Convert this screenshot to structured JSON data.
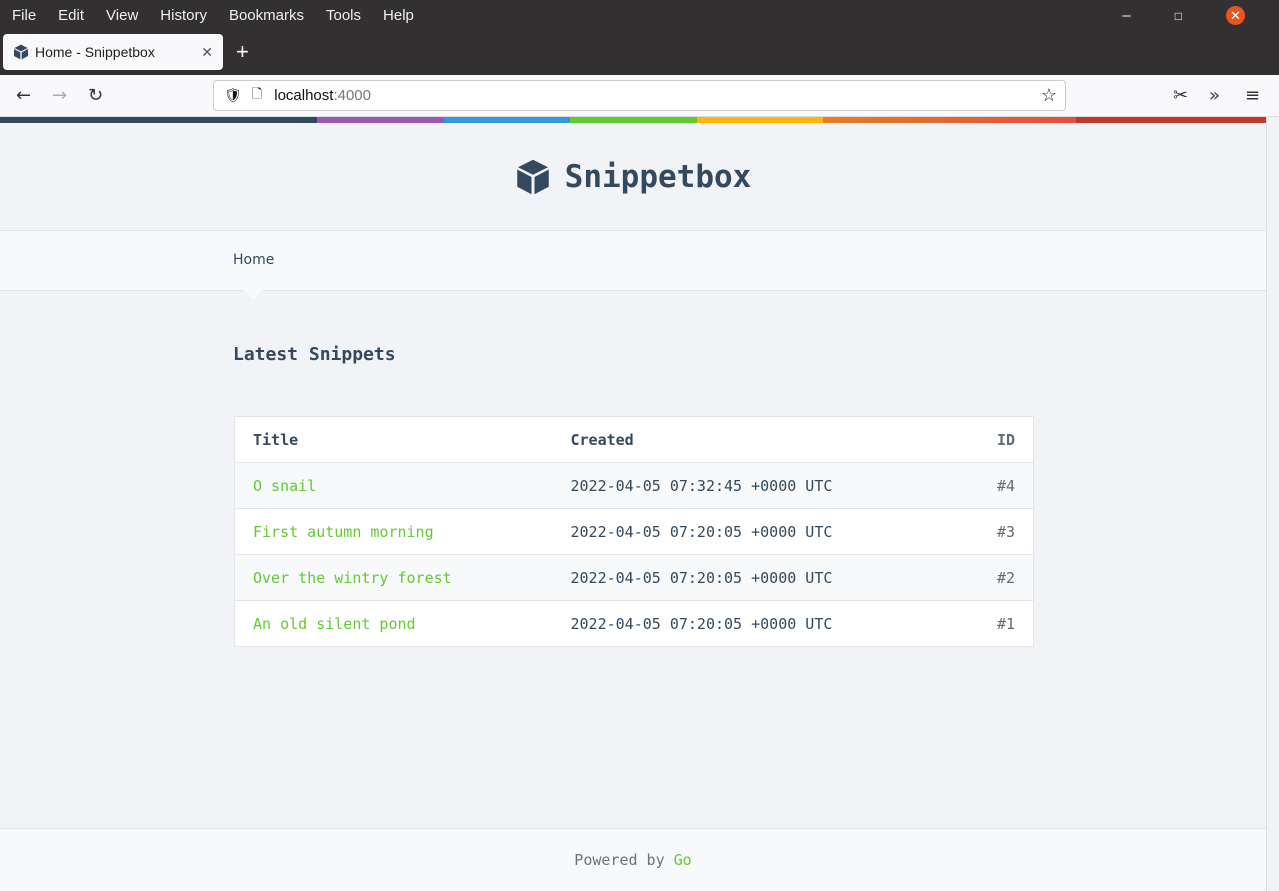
{
  "browser": {
    "menu": [
      "File",
      "Edit",
      "View",
      "History",
      "Bookmarks",
      "Tools",
      "Help"
    ],
    "tab_title": "Home - Snippetbox",
    "url_host": "localhost",
    "url_port": ":4000"
  },
  "colors": {
    "stripe": [
      "#34495e",
      "#9b59b6",
      "#3498db",
      "#62cb31",
      "#ffb606",
      "#e67e22",
      "#c0392b"
    ],
    "accent": "#62cb31",
    "brand": "#34495e"
  },
  "site": {
    "title": "Snippetbox",
    "nav_home": "Home",
    "heading": "Latest Snippets"
  },
  "table": {
    "headers": [
      "Title",
      "Created",
      "ID"
    ],
    "rows": [
      {
        "title": "O snail",
        "created": "2022-04-05 07:32:45 +0000 UTC",
        "id": "#4"
      },
      {
        "title": "First autumn morning",
        "created": "2022-04-05 07:20:05 +0000 UTC",
        "id": "#3"
      },
      {
        "title": "Over the wintry forest",
        "created": "2022-04-05 07:20:05 +0000 UTC",
        "id": "#2"
      },
      {
        "title": "An old silent pond",
        "created": "2022-04-05 07:20:05 +0000 UTC",
        "id": "#1"
      }
    ]
  },
  "footer": {
    "text": "Powered by ",
    "link": "Go"
  }
}
